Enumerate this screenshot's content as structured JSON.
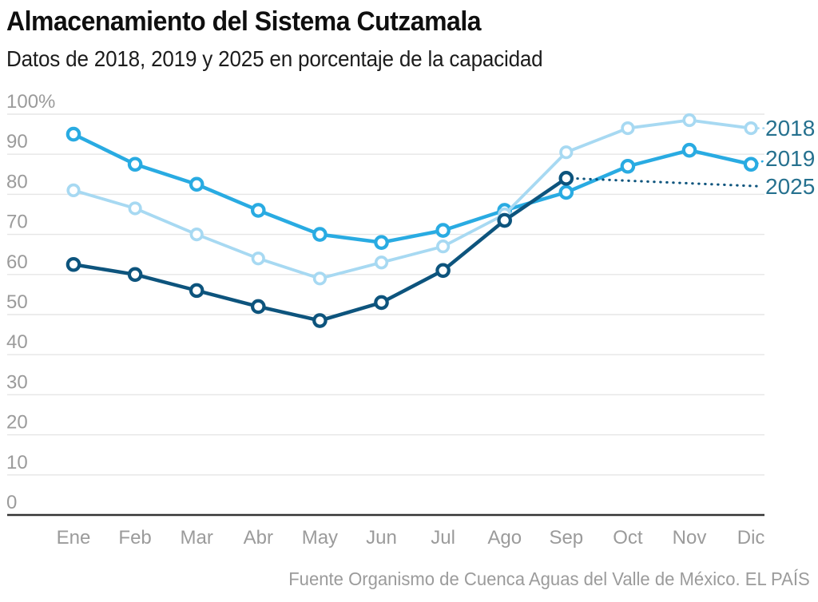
{
  "chart_data": {
    "type": "line",
    "title": "Almacenamiento del Sistema Cutzamala",
    "subtitle": "Datos de 2018, 2019 y 2025 en porcentaje de la capacidad",
    "source": "Fuente Organismo de Cuenca Aguas del Valle de México. EL PAÍS",
    "categories": [
      "Ene",
      "Feb",
      "Mar",
      "Abr",
      "May",
      "Jun",
      "Jul",
      "Ago",
      "Sep",
      "Oct",
      "Nov",
      "Dic"
    ],
    "ylabel": "",
    "xlabel": "",
    "ylim": [
      0,
      100
    ],
    "ytick_step": 10,
    "ytick_labels": [
      "100%",
      "90",
      "80",
      "70",
      "60",
      "50",
      "40",
      "30",
      "20",
      "10",
      "0"
    ],
    "grid": true,
    "legend_position": "right-end-of-lines",
    "series": [
      {
        "name": "2018",
        "color": "#a7d9f2",
        "values": [
          81,
          76.5,
          70,
          64,
          59,
          63,
          67,
          75,
          90.5,
          96.5,
          98.5,
          96.5
        ]
      },
      {
        "name": "2019",
        "color": "#29abe2",
        "values": [
          95,
          87.5,
          82.5,
          76,
          70,
          68,
          71,
          76,
          80.5,
          87,
          91,
          87.5
        ]
      },
      {
        "name": "2025",
        "color": "#0d547d",
        "values": [
          62.5,
          60,
          56,
          52,
          48.5,
          53,
          61,
          73.5,
          84,
          null,
          null,
          null
        ],
        "projection": {
          "from_category": "Sep",
          "to_category": "Dic",
          "start_value": 84,
          "end_value": 82,
          "style": "dotted"
        }
      }
    ],
    "colors": {
      "grid": "#e6e6e6",
      "zero_axis": "#333333",
      "axis_text": "#9b9b9b",
      "legend_text": "#26718f"
    }
  }
}
